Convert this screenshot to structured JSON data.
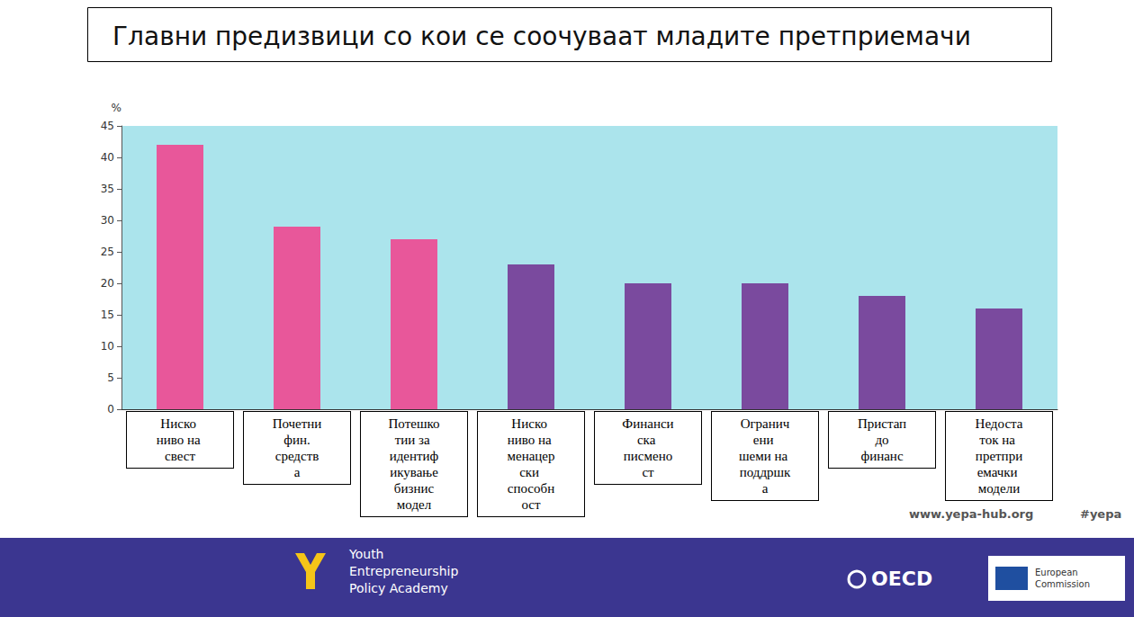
{
  "chart_data": {
    "type": "bar",
    "title": "Главни предизвици со кои се соочуваат младите претприемачи",
    "y_label": "%",
    "categories": [
      "Ниско ниво на свест",
      "Почетни фин. средства",
      "Потешкотии за идентификување бизнис модел",
      "Ниско ниво на менацерски способност",
      "Финансиска писменост",
      "Ограничени шеми на поддршка",
      "Пристап до финанс",
      "Недостаток на претприемачки модели"
    ],
    "values": [
      42,
      29,
      27,
      23,
      20,
      20,
      18,
      16
    ],
    "colors": [
      "#e8579a",
      "#e8579a",
      "#e8579a",
      "#7a4a9e",
      "#7a4a9e",
      "#7a4a9e",
      "#7a4a9e",
      "#7a4a9e"
    ],
    "ylim": [
      0,
      45
    ],
    "yticks": [
      0,
      5,
      10,
      15,
      20,
      25,
      30,
      35,
      40,
      45
    ],
    "grid": false
  },
  "footer": {
    "url": "www.yepa-hub.org",
    "hashtag": "#yepa",
    "academy": "Youth Entrepreneurship Policy Academy",
    "logos": [
      "OECD",
      "European Commission"
    ]
  }
}
